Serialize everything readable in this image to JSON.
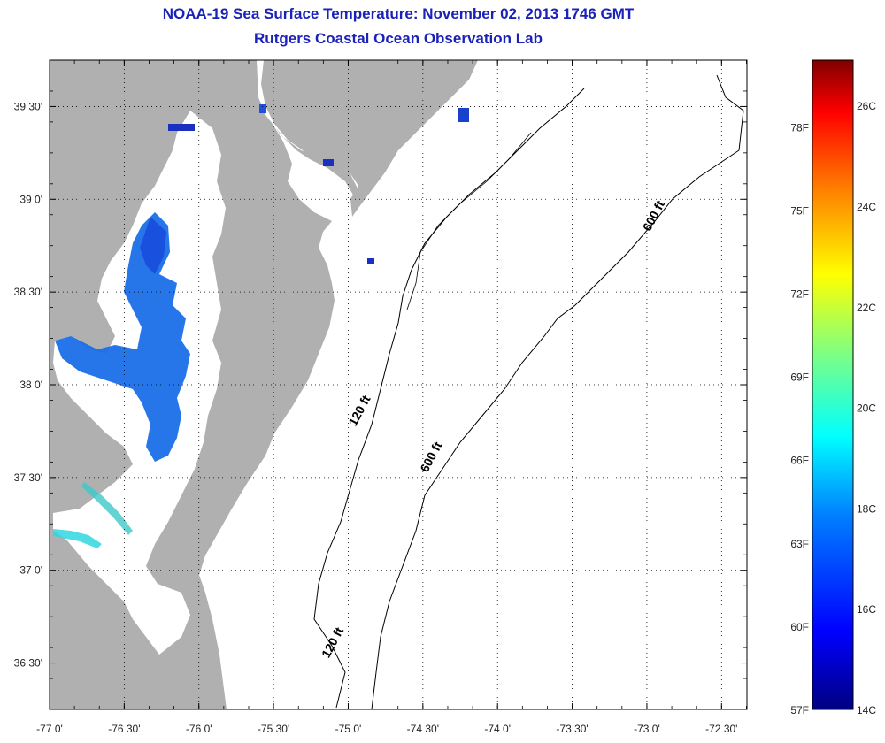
{
  "title": {
    "line1": "NOAA-19 Sea Surface Temperature:  November 02, 2013 1746 GMT",
    "line2": "Rutgers Coastal Ocean Observation Lab"
  },
  "map": {
    "lon_range": [
      -77.0,
      -72.33
    ],
    "lat_range": [
      36.25,
      39.75
    ],
    "lon_ticks": [
      {
        "value": -77.0,
        "label": "-77 0'"
      },
      {
        "value": -76.5,
        "label": "-76 30'"
      },
      {
        "value": -76.0,
        "label": "-76 0'"
      },
      {
        "value": -75.5,
        "label": "-75 30'"
      },
      {
        "value": -75.0,
        "label": "-75 0'"
      },
      {
        "value": -74.5,
        "label": "-74 30'"
      },
      {
        "value": -74.0,
        "label": "-74 0'"
      },
      {
        "value": -73.5,
        "label": "-73 30'"
      },
      {
        "value": -73.0,
        "label": "-73 0'"
      },
      {
        "value": -72.5,
        "label": "-72 30'"
      }
    ],
    "lat_ticks": [
      {
        "value": 39.5,
        "label": "39 30'"
      },
      {
        "value": 39.0,
        "label": "39 0'"
      },
      {
        "value": 38.5,
        "label": "38 30'"
      },
      {
        "value": 38.0,
        "label": "38 0'"
      },
      {
        "value": 37.5,
        "label": "37 30'"
      },
      {
        "value": 37.0,
        "label": "37 0'"
      },
      {
        "value": 36.5,
        "label": "36 30'"
      }
    ],
    "grid": "dotted",
    "land_color": "#b0b0b0",
    "water_color": "#ffffff",
    "contour_labels": [
      {
        "text": "120 ft",
        "lon": -74.9,
        "lat": 37.85
      },
      {
        "text": "600 ft",
        "lon": -74.42,
        "lat": 37.6
      },
      {
        "text": "600 ft",
        "lon": -72.93,
        "lat": 38.9
      },
      {
        "text": "120 ft",
        "lon": -75.08,
        "lat": 36.6
      }
    ]
  },
  "colorbar": {
    "fahrenheit": [
      "78F",
      "75F",
      "72F",
      "69F",
      "66F",
      "63F",
      "60F",
      "57F"
    ],
    "celsius": [
      "26C",
      "24C",
      "22C",
      "20C",
      "18C",
      "16C",
      "14C"
    ],
    "colors": [
      "#000080",
      "#0000ff",
      "#0080ff",
      "#00ffff",
      "#80ff80",
      "#ffff00",
      "#ff8000",
      "#ff0000",
      "#800000"
    ]
  }
}
